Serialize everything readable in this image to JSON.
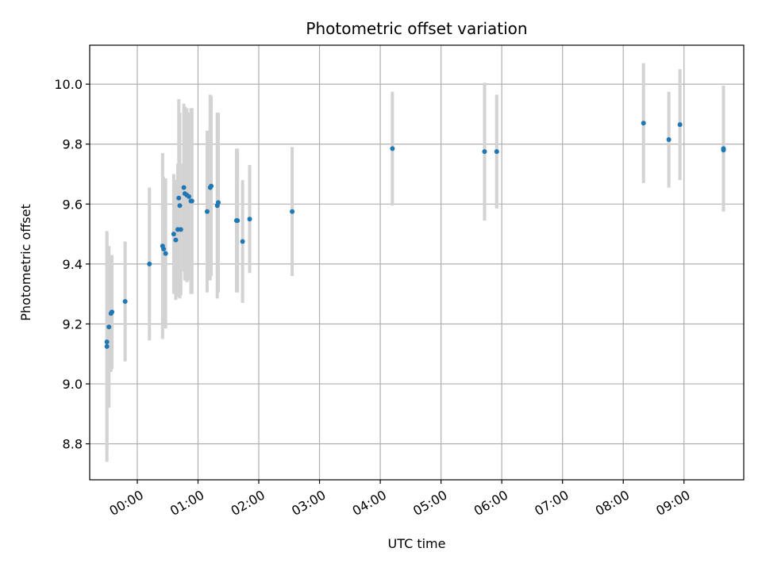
{
  "chart_data": {
    "type": "scatter",
    "title": "Photometric offset variation",
    "xlabel": "UTC time",
    "ylabel": "Photometric offset",
    "grid": true,
    "x_ticks": [
      "00:00",
      "01:00",
      "02:00",
      "03:00",
      "04:00",
      "05:00",
      "06:00",
      "07:00",
      "08:00",
      "09:00"
    ],
    "y_ticks": [
      "8.8",
      "9.0",
      "9.2",
      "9.4",
      "9.6",
      "9.8",
      "10.0"
    ],
    "xlim": [
      "23:13",
      "09:59"
    ],
    "ylim": [
      8.68,
      10.13
    ],
    "colors": {
      "point": "#1f77b4",
      "errorbar": "#d3d3d3",
      "grid": "#b0b0b0"
    },
    "points": [
      {
        "x": "23:30",
        "y": 9.14,
        "err": 0.36
      },
      {
        "x": "23:30",
        "y": 9.125,
        "err": 0.385
      },
      {
        "x": "23:32",
        "y": 9.19,
        "err": 0.27
      },
      {
        "x": "23:34",
        "y": 9.235,
        "err": 0.195
      },
      {
        "x": "23:35",
        "y": 9.24,
        "err": 0.19
      },
      {
        "x": "23:48",
        "y": 9.275,
        "err": 0.2
      },
      {
        "x": "00:12",
        "y": 9.4,
        "err": 0.255
      },
      {
        "x": "00:25",
        "y": 9.46,
        "err": 0.31
      },
      {
        "x": "00:26",
        "y": 9.45,
        "err": 0.24
      },
      {
        "x": "00:28",
        "y": 9.435,
        "err": 0.25
      },
      {
        "x": "00:36",
        "y": 9.5,
        "err": 0.2
      },
      {
        "x": "00:38",
        "y": 9.48,
        "err": 0.2
      },
      {
        "x": "00:40",
        "y": 9.515,
        "err": 0.22
      },
      {
        "x": "00:41",
        "y": 9.62,
        "err": 0.33
      },
      {
        "x": "00:42",
        "y": 9.595,
        "err": 0.31
      },
      {
        "x": "00:43",
        "y": 9.515,
        "err": 0.22
      },
      {
        "x": "00:46",
        "y": 9.655,
        "err": 0.28
      },
      {
        "x": "00:47",
        "y": 9.635,
        "err": 0.29
      },
      {
        "x": "00:49",
        "y": 9.63,
        "err": 0.29
      },
      {
        "x": "00:51",
        "y": 9.625,
        "err": 0.28
      },
      {
        "x": "00:53",
        "y": 9.61,
        "err": 0.31
      },
      {
        "x": "00:54",
        "y": 9.61,
        "err": 0.31
      },
      {
        "x": "01:09",
        "y": 9.575,
        "err": 0.27
      },
      {
        "x": "01:12",
        "y": 9.655,
        "err": 0.31
      },
      {
        "x": "01:13",
        "y": 9.66,
        "err": 0.3
      },
      {
        "x": "01:19",
        "y": 9.595,
        "err": 0.31
      },
      {
        "x": "01:20",
        "y": 9.605,
        "err": 0.3
      },
      {
        "x": "01:38",
        "y": 9.545,
        "err": 0.24
      },
      {
        "x": "01:39",
        "y": 9.545,
        "err": 0.24
      },
      {
        "x": "01:44",
        "y": 9.475,
        "err": 0.205
      },
      {
        "x": "01:51",
        "y": 9.55,
        "err": 0.18
      },
      {
        "x": "02:33",
        "y": 9.575,
        "err": 0.215
      },
      {
        "x": "04:12",
        "y": 9.785,
        "err": 0.19
      },
      {
        "x": "05:43",
        "y": 9.775,
        "err": 0.23
      },
      {
        "x": "05:55",
        "y": 9.775,
        "err": 0.19
      },
      {
        "x": "08:20",
        "y": 9.87,
        "err": 0.2
      },
      {
        "x": "08:45",
        "y": 9.815,
        "err": 0.16
      },
      {
        "x": "08:56",
        "y": 9.865,
        "err": 0.185
      },
      {
        "x": "09:39",
        "y": 9.785,
        "err": 0.21
      },
      {
        "x": "09:39",
        "y": 9.78,
        "err": 0.2
      }
    ]
  }
}
